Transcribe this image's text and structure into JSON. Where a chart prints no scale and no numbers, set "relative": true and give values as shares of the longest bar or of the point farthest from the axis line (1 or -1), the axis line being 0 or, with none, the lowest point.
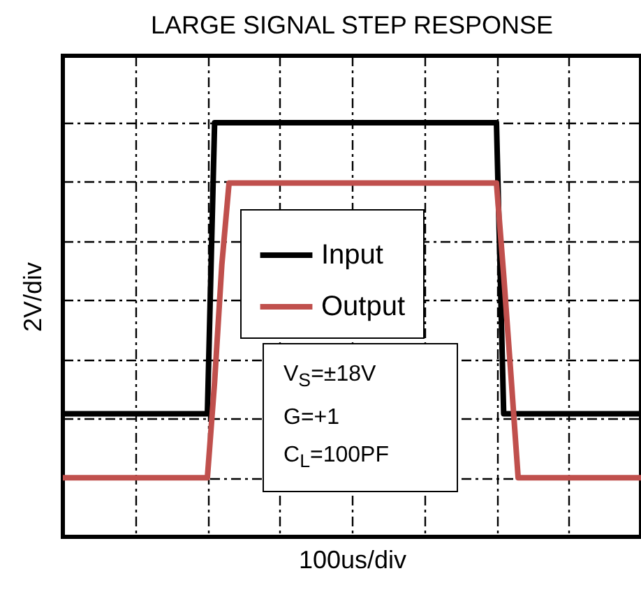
{
  "chart_data": {
    "type": "line",
    "title": "LARGE SIGNAL STEP RESPONSE",
    "xlabel": "100us/div",
    "ylabel": "2V/div",
    "relative": true,
    "grid": true,
    "legend": "center",
    "categories": [
      null,
      null,
      null,
      null,
      null,
      null,
      null,
      null,
      null,
      null,
      null,
      null,
      null,
      null,
      null,
      null,
      null,
      null,
      null,
      null,
      null,
      null,
      null,
      null,
      null,
      null,
      null,
      null,
      null,
      null,
      null,
      null,
      null,
      null,
      null,
      null,
      null,
      null,
      null,
      null,
      null,
      null,
      null,
      null,
      null,
      null,
      null,
      null,
      null,
      null,
      null,
      null,
      null,
      null,
      null,
      null,
      null,
      null,
      null,
      null,
      null,
      null,
      null,
      null,
      null,
      null,
      null,
      null,
      null,
      null,
      null,
      null,
      null,
      null,
      null,
      null,
      null,
      null,
      null,
      null,
      null
    ],
    "series": [
      {
        "name": "Input",
        "color": "#000000",
        "values": [
          0.18,
          0.18,
          0.18,
          0.18,
          0.18,
          0.18,
          0.18,
          0.18,
          0.18,
          0.18,
          0.18,
          0.18,
          0.18,
          0.18,
          0.18,
          0.18,
          0.18,
          0.18,
          0.18,
          0.18,
          0.18,
          1,
          1,
          1,
          1,
          1,
          1,
          1,
          1,
          1,
          1,
          1,
          1,
          1,
          1,
          1,
          1,
          1,
          1,
          1,
          1,
          1,
          1,
          1,
          1,
          1,
          1,
          1,
          1,
          1,
          1,
          1,
          1,
          1,
          1,
          1,
          1,
          1,
          1,
          1,
          1,
          0.18,
          0.18,
          0.18,
          0.18,
          0.18,
          0.18,
          0.18,
          0.18,
          0.18,
          0.18,
          0.18,
          0.18,
          0.18,
          0.18,
          0.18,
          0.18,
          0.18,
          0.18,
          0.18,
          0.18
        ]
      },
      {
        "name": "Output",
        "color": "#c0504d",
        "values": [
          0,
          0,
          0,
          0,
          0,
          0,
          0,
          0,
          0,
          0,
          0,
          0,
          0,
          0,
          0,
          0,
          0,
          0,
          0,
          0,
          0,
          0.27,
          0.6,
          0.83,
          0.83,
          0.83,
          0.83,
          0.83,
          0.83,
          0.83,
          0.83,
          0.83,
          0.83,
          0.83,
          0.83,
          0.83,
          0.83,
          0.83,
          0.83,
          0.83,
          0.83,
          0.83,
          0.83,
          0.83,
          0.83,
          0.83,
          0.83,
          0.83,
          0.83,
          0.83,
          0.83,
          0.83,
          0.83,
          0.83,
          0.83,
          0.83,
          0.83,
          0.83,
          0.83,
          0.83,
          0.83,
          0.57,
          0.29,
          0,
          0,
          0,
          0,
          0,
          0,
          0,
          0,
          0,
          0,
          0,
          0,
          0,
          0,
          0,
          0,
          0,
          0
        ]
      }
    ],
    "annotations": [
      "V$_{S}$=±18V",
      "G=+1",
      "C$_{L}$=100PF"
    ]
  }
}
